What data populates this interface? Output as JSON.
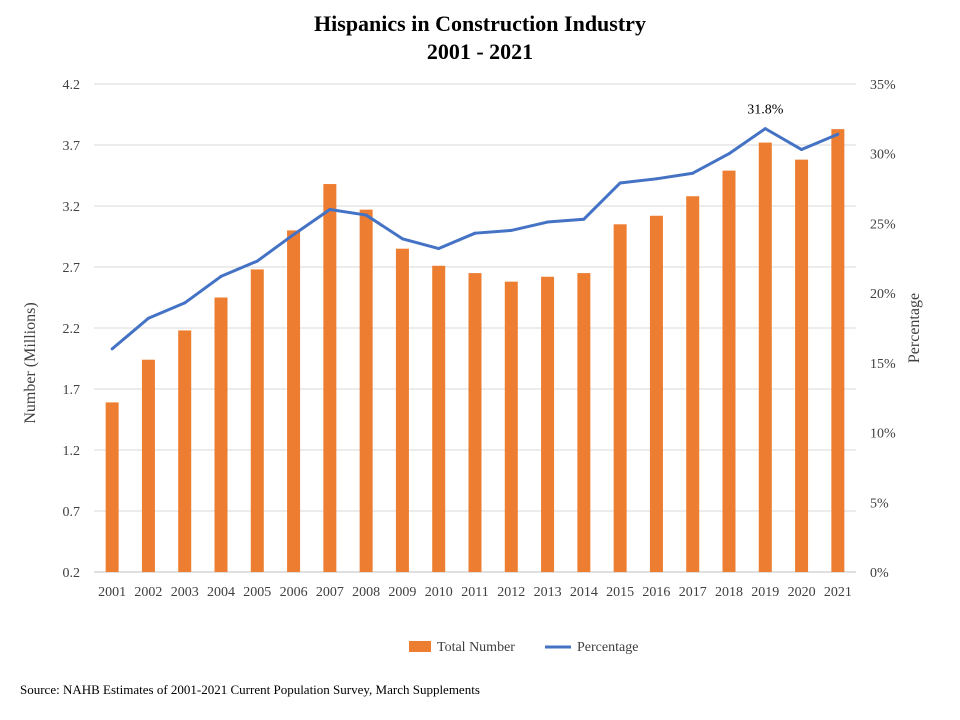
{
  "chart_data": {
    "type": "bar+line",
    "title": "Hispanics in Construction Industry",
    "subtitle": "2001 - 2021",
    "categories": [
      "2001",
      "2002",
      "2003",
      "2004",
      "2005",
      "2006",
      "2007",
      "2008",
      "2009",
      "2010",
      "2011",
      "2012",
      "2013",
      "2014",
      "2015",
      "2016",
      "2017",
      "2018",
      "2019",
      "2020",
      "2021"
    ],
    "series": [
      {
        "name": "Total Number",
        "type": "bar",
        "axis": "left",
        "color": "#ED7D31",
        "values": [
          1.59,
          1.94,
          2.18,
          2.45,
          2.68,
          3.0,
          3.38,
          3.17,
          2.85,
          2.71,
          2.65,
          2.58,
          2.62,
          2.65,
          3.05,
          3.12,
          3.28,
          3.49,
          3.72,
          3.58,
          3.83
        ]
      },
      {
        "name": "Percentage",
        "type": "line",
        "axis": "right",
        "color": "#4472C4",
        "values": [
          16.0,
          18.2,
          19.3,
          21.2,
          22.3,
          24.2,
          26.0,
          25.6,
          23.9,
          23.2,
          24.3,
          24.5,
          25.1,
          25.3,
          27.9,
          28.2,
          28.6,
          30.0,
          31.8,
          30.3,
          31.4
        ]
      }
    ],
    "ylabel": "Number (Millions)",
    "y2label": "Percentage",
    "ylim": [
      0.2,
      4.2
    ],
    "y_ticks": [
      "0.2",
      "0.7",
      "1.2",
      "1.7",
      "2.2",
      "2.7",
      "3.2",
      "3.7",
      "4.2"
    ],
    "y2lim": [
      0,
      35
    ],
    "y2_ticks": [
      "0%",
      "5%",
      "10%",
      "15%",
      "20%",
      "25%",
      "30%",
      "35%"
    ],
    "annotations": [
      {
        "category": "2019",
        "series": "Percentage",
        "text": "31.8%"
      }
    ],
    "grid": "horizontal",
    "legend": "bottom",
    "source": "Source: NAHB Estimates of 2001-2021  Current Population Survey, March Supplements"
  }
}
